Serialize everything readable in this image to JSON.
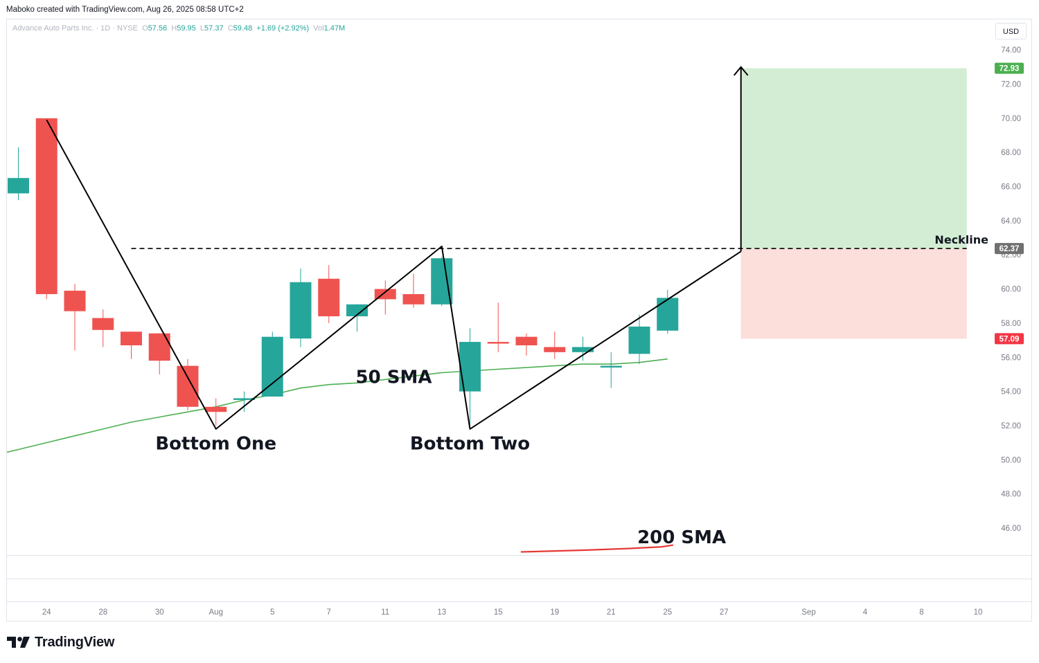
{
  "header": {
    "credit": "Maboko created with TradingView.com, Aug 26, 2025 08:58 UTC+2"
  },
  "legend": {
    "symbol": "Advance Auto Parts Inc. · 1D · NYSE",
    "o_label": "O",
    "o_value": "57.56",
    "h_label": "H",
    "h_value": "59.95",
    "l_label": "L",
    "l_value": "57.37",
    "c_label": "C",
    "c_value": "59.48",
    "change": "+1.69 (+2.92%)",
    "vol_label": "Vol",
    "vol_value": "1.47M"
  },
  "currency": "USD",
  "footer": {
    "brand": "TradingView"
  },
  "colors": {
    "up": "#26a69a",
    "down": "#ef5350",
    "sma50": "#4caf50",
    "sma200": "#e53935",
    "target_zone": "#d3edd5",
    "stop_zone": "#fcdedb",
    "target_tag": "#4caf50",
    "stop_tag": "#f23645",
    "neckline_tag": "#707070"
  },
  "chart_data": {
    "type": "candlestick",
    "symbol": "Advance Auto Parts Inc.",
    "timeframe": "1D",
    "exchange": "NYSE",
    "ylim": [
      45,
      75
    ],
    "y_ticks": [
      "46.00",
      "48.00",
      "50.00",
      "52.00",
      "54.00",
      "56.00",
      "58.00",
      "60.00",
      "62.00",
      "64.00",
      "66.00",
      "68.00",
      "70.00",
      "72.00",
      "74.00"
    ],
    "x_ticks": [
      {
        "i": 1,
        "label": "24"
      },
      {
        "i": 3,
        "label": "28"
      },
      {
        "i": 5,
        "label": "30"
      },
      {
        "i": 7,
        "label": "Aug"
      },
      {
        "i": 9,
        "label": "5"
      },
      {
        "i": 11,
        "label": "7"
      },
      {
        "i": 13,
        "label": "11"
      },
      {
        "i": 15,
        "label": "13"
      },
      {
        "i": 17,
        "label": "15"
      },
      {
        "i": 19,
        "label": "19"
      },
      {
        "i": 21,
        "label": "21"
      },
      {
        "i": 23,
        "label": "25"
      },
      {
        "i": 25,
        "label": "27"
      },
      {
        "i": 28,
        "label": "Sep"
      },
      {
        "i": 30,
        "label": "4"
      },
      {
        "i": 32,
        "label": "8"
      },
      {
        "i": 34,
        "label": "10"
      }
    ],
    "candles": [
      {
        "i": 0,
        "date": "Jul 23",
        "o": 65.6,
        "h": 68.3,
        "l": 65.2,
        "c": 66.5
      },
      {
        "i": 1,
        "date": "Jul 24",
        "o": 70.0,
        "h": 70.0,
        "l": 59.4,
        "c": 59.7
      },
      {
        "i": 2,
        "date": "Jul 25",
        "o": 59.9,
        "h": 60.3,
        "l": 56.4,
        "c": 58.7
      },
      {
        "i": 3,
        "date": "Jul 28",
        "o": 58.3,
        "h": 58.8,
        "l": 56.6,
        "c": 57.6
      },
      {
        "i": 4,
        "date": "Jul 29",
        "o": 57.5,
        "h": 57.5,
        "l": 55.9,
        "c": 56.7
      },
      {
        "i": 5,
        "date": "Jul 30",
        "o": 57.4,
        "h": 57.4,
        "l": 55.0,
        "c": 55.8
      },
      {
        "i": 6,
        "date": "Jul 31",
        "o": 55.5,
        "h": 55.9,
        "l": 52.9,
        "c": 53.1
      },
      {
        "i": 7,
        "date": "Aug 1",
        "o": 53.1,
        "h": 53.6,
        "l": 52.0,
        "c": 52.8
      },
      {
        "i": 8,
        "date": "Aug 4",
        "o": 53.5,
        "h": 54.0,
        "l": 52.8,
        "c": 53.6
      },
      {
        "i": 9,
        "date": "Aug 5",
        "o": 53.7,
        "h": 57.5,
        "l": 53.7,
        "c": 57.2
      },
      {
        "i": 10,
        "date": "Aug 6",
        "o": 57.1,
        "h": 61.2,
        "l": 56.6,
        "c": 60.4
      },
      {
        "i": 11,
        "date": "Aug 7",
        "o": 60.6,
        "h": 61.4,
        "l": 58.0,
        "c": 58.4
      },
      {
        "i": 12,
        "date": "Aug 8",
        "o": 58.4,
        "h": 59.1,
        "l": 57.5,
        "c": 59.1
      },
      {
        "i": 13,
        "date": "Aug 11",
        "o": 60.0,
        "h": 60.5,
        "l": 58.5,
        "c": 59.4
      },
      {
        "i": 14,
        "date": "Aug 12",
        "o": 59.7,
        "h": 60.9,
        "l": 58.9,
        "c": 59.1
      },
      {
        "i": 15,
        "date": "Aug 13",
        "o": 59.1,
        "h": 61.9,
        "l": 59.0,
        "c": 61.8
      },
      {
        "i": 16,
        "date": "Aug 14",
        "o": 54.0,
        "h": 57.7,
        "l": 51.8,
        "c": 56.9
      },
      {
        "i": 17,
        "date": "Aug 15",
        "o": 56.9,
        "h": 59.2,
        "l": 56.3,
        "c": 56.8
      },
      {
        "i": 18,
        "date": "Aug 18",
        "o": 57.2,
        "h": 57.4,
        "l": 56.1,
        "c": 56.7
      },
      {
        "i": 19,
        "date": "Aug 19",
        "o": 56.6,
        "h": 57.5,
        "l": 55.9,
        "c": 56.3
      },
      {
        "i": 20,
        "date": "Aug 20",
        "o": 56.3,
        "h": 57.2,
        "l": 55.8,
        "c": 56.6
      },
      {
        "i": 21,
        "date": "Aug 21",
        "o": 55.4,
        "h": 56.3,
        "l": 54.2,
        "c": 55.5
      },
      {
        "i": 22,
        "date": "Aug 22",
        "o": 56.2,
        "h": 58.5,
        "l": 55.6,
        "c": 57.8
      },
      {
        "i": 23,
        "date": "Aug 25",
        "o": 57.56,
        "h": 59.95,
        "l": 57.37,
        "c": 59.48
      }
    ],
    "sma50": {
      "name": "50 SMA",
      "points": [
        [
          -1.4,
          49.9
        ],
        [
          -1,
          50.2
        ],
        [
          0,
          50.6
        ],
        [
          1,
          51.0
        ],
        [
          2,
          51.4
        ],
        [
          3,
          51.8
        ],
        [
          4,
          52.2
        ],
        [
          5,
          52.5
        ],
        [
          6,
          52.8
        ],
        [
          7,
          53.1
        ],
        [
          8,
          53.5
        ],
        [
          9,
          53.8
        ],
        [
          10,
          54.2
        ],
        [
          11,
          54.4
        ],
        [
          12,
          54.5
        ],
        [
          13,
          54.7
        ],
        [
          14,
          54.9
        ],
        [
          15,
          55.1
        ],
        [
          16,
          55.2
        ],
        [
          17,
          55.3
        ],
        [
          18,
          55.4
        ],
        [
          19,
          55.5
        ],
        [
          20,
          55.6
        ],
        [
          21,
          55.6
        ],
        [
          22,
          55.7
        ],
        [
          23,
          55.9
        ]
      ]
    },
    "sma200": {
      "name": "200 SMA",
      "points": [
        [
          17.8,
          44.6
        ],
        [
          20,
          44.7
        ],
        [
          21.6,
          44.8
        ],
        [
          22.8,
          44.9
        ],
        [
          23.2,
          45.0
        ]
      ]
    },
    "pattern_lines": [
      [
        [
          1,
          69.9
        ],
        [
          7,
          51.8
        ],
        [
          15,
          62.5
        ],
        [
          16,
          51.8
        ],
        [
          25.6,
          62.2
        ]
      ]
    ],
    "projection_arrow": {
      "x": 25.6,
      "from": 62.2,
      "to": 73.0
    },
    "neckline": {
      "label": "Neckline",
      "value": 62.37,
      "from_i": 4.0,
      "to_i": 33.6
    },
    "target_zone": {
      "top": 72.93,
      "bottom": 62.37,
      "from_i": 25.6,
      "to_i": 33.6
    },
    "stop_zone": {
      "top": 62.37,
      "bottom": 57.09,
      "from_i": 25.6,
      "to_i": 33.6
    },
    "price_tags": [
      {
        "value": 72.93,
        "label": "72.93",
        "kind": "target"
      },
      {
        "value": 62.37,
        "label": "62.37",
        "kind": "neckline"
      },
      {
        "value": 57.09,
        "label": "57.09",
        "kind": "stop"
      }
    ],
    "annotations": [
      {
        "text": "Bottom One",
        "i": 7,
        "y": 50.6
      },
      {
        "text": "Bottom Two",
        "i": 16,
        "y": 50.6
      },
      {
        "text": "50 SMA",
        "i": 13.3,
        "y": 54.5
      },
      {
        "text": "200 SMA",
        "i": 23.5,
        "y": 45.1
      }
    ]
  }
}
